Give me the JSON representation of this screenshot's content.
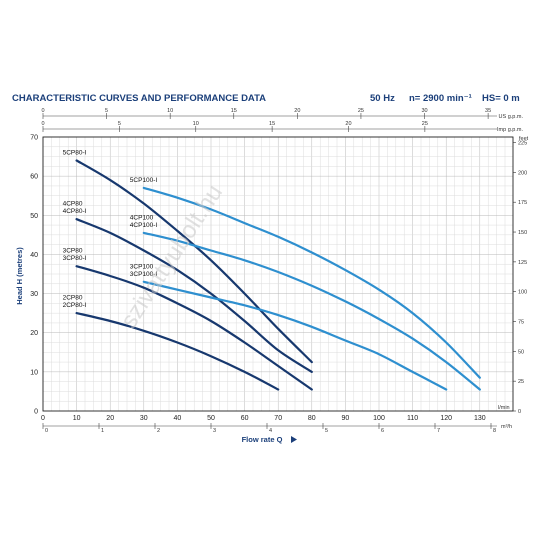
{
  "header": {
    "title": "CHARACTERISTIC CURVES AND PERFORMANCE DATA",
    "freq": "50 Hz",
    "speed": "n= 2900 min⁻¹",
    "hs": "HS= 0 m"
  },
  "watermark": "szivattyubolt.hu",
  "chart_data": {
    "type": "line",
    "xlabel": "Flow rate Q",
    "ylabel": "Head H  (metres)",
    "x_unit": "l/min",
    "xlim": [
      0,
      140
    ],
    "ylim": [
      0,
      70
    ],
    "x_ticks": [
      0,
      10,
      20,
      30,
      40,
      50,
      60,
      70,
      80,
      90,
      100,
      110,
      120,
      130
    ],
    "y_ticks": [
      0,
      10,
      20,
      30,
      40,
      50,
      60,
      70
    ],
    "m3h_label": "m³/h",
    "m3h_ticks": [
      0,
      1,
      2,
      3,
      4,
      5,
      6,
      7,
      8
    ],
    "usgpm_label": "US g.p.m.",
    "usgpm_ticks": [
      0,
      5,
      10,
      15,
      20,
      25,
      30,
      35
    ],
    "impgpm_label": "Imp g.p.m.",
    "impgpm_ticks": [
      0,
      5,
      10,
      15,
      20,
      25
    ],
    "feet_label": "feet",
    "feet_ticks": [
      0,
      25,
      50,
      75,
      100,
      125,
      150,
      175,
      200,
      225
    ],
    "grid": true,
    "series": [
      {
        "name": "5CP80-I",
        "label_lines": [
          "5CP80-I"
        ],
        "color": "#17386e",
        "x": [
          10,
          20,
          30,
          40,
          50,
          60,
          70,
          80
        ],
        "y": [
          64,
          59,
          53,
          46,
          38.5,
          30,
          21,
          12.5
        ]
      },
      {
        "name": "4CP80 4CP80-I",
        "label_lines": [
          "4CP80",
          "4CP80-I"
        ],
        "color": "#17386e",
        "x": [
          10,
          20,
          30,
          40,
          50,
          60,
          70,
          80
        ],
        "y": [
          49,
          45.5,
          41,
          36,
          30,
          23,
          15.5,
          10
        ]
      },
      {
        "name": "3CP80 3CP80-I",
        "label_lines": [
          "3CP80",
          "3CP80-I"
        ],
        "color": "#17386e",
        "x": [
          10,
          20,
          30,
          40,
          50,
          60,
          70,
          80
        ],
        "y": [
          37,
          34.5,
          31.5,
          27.5,
          23,
          17.5,
          11.5,
          5.5
        ]
      },
      {
        "name": "2CP80 2CP80-I",
        "label_lines": [
          "2CP80",
          "2CP80-I"
        ],
        "color": "#17386e",
        "x": [
          10,
          20,
          30,
          40,
          50,
          60,
          70
        ],
        "y": [
          25,
          23,
          20.5,
          17.5,
          14,
          10,
          5.5
        ]
      },
      {
        "name": "5CP100-I",
        "label_lines": [
          "5CP100-I"
        ],
        "color": "#2e8fcf",
        "x": [
          30,
          40,
          50,
          60,
          70,
          80,
          90,
          100,
          110,
          120,
          130
        ],
        "y": [
          57,
          54.5,
          51.5,
          48,
          44.5,
          40.5,
          36,
          31,
          25,
          17.5,
          8.5
        ]
      },
      {
        "name": "4CP100 4CP100-I",
        "label_lines": [
          "4CP100",
          "4CP100-I"
        ],
        "color": "#2e8fcf",
        "x": [
          30,
          40,
          50,
          60,
          70,
          80,
          90,
          100,
          110,
          120,
          130
        ],
        "y": [
          45.5,
          43.5,
          41,
          38.5,
          35.5,
          32,
          28,
          23.5,
          18.5,
          12.5,
          5.5
        ]
      },
      {
        "name": "3CP100 3CP100-I",
        "label_lines": [
          "3CP100",
          "3CP100-I"
        ],
        "color": "#2e8fcf",
        "x": [
          30,
          40,
          50,
          60,
          70,
          80,
          90,
          100,
          110,
          120
        ],
        "y": [
          33,
          31,
          29,
          27,
          24.5,
          21.5,
          18,
          14.5,
          10,
          5.5
        ]
      }
    ]
  }
}
